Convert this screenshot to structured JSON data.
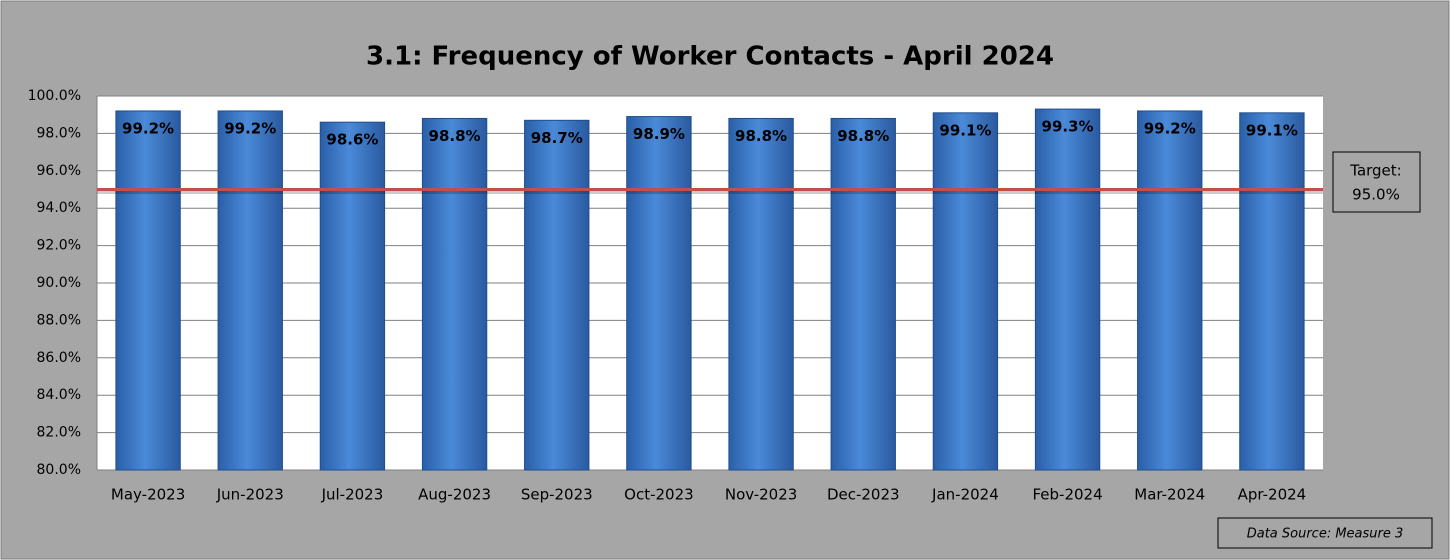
{
  "chart_data": {
    "type": "bar",
    "title": "3.1: Frequency of Worker Contacts - April 2024",
    "categories": [
      "May-2023",
      "Jun-2023",
      "Jul-2023",
      "Aug-2023",
      "Sep-2023",
      "Oct-2023",
      "Nov-2023",
      "Dec-2023",
      "Jan-2024",
      "Feb-2024",
      "Mar-2024",
      "Apr-2024"
    ],
    "values": [
      99.2,
      99.2,
      98.6,
      98.8,
      98.7,
      98.9,
      98.8,
      98.8,
      99.1,
      99.3,
      99.2,
      99.1
    ],
    "value_labels": [
      "99.2%",
      "99.2%",
      "98.6%",
      "98.8%",
      "98.7%",
      "98.9%",
      "98.8%",
      "98.8%",
      "99.1%",
      "99.3%",
      "99.2%",
      "99.1%"
    ],
    "color": "#3f7fd0",
    "ylim": [
      80,
      100
    ],
    "yticks": [
      {
        "value": 80,
        "label": "80.0%"
      },
      {
        "value": 82,
        "label": "82.0%"
      },
      {
        "value": 84,
        "label": "84.0%"
      },
      {
        "value": 86,
        "label": "86.0%"
      },
      {
        "value": 88,
        "label": "88.0%"
      },
      {
        "value": 90,
        "label": "90.0%"
      },
      {
        "value": 92,
        "label": "92.0%"
      },
      {
        "value": 94,
        "label": "94.0%"
      },
      {
        "value": 96,
        "label": "96.0%"
      },
      {
        "value": 98,
        "label": "98.0%"
      },
      {
        "value": 100,
        "label": "100.0%"
      }
    ],
    "grid": true,
    "target": {
      "label": "Target:",
      "value": 95,
      "value_label": "95.0%",
      "color": "#c0504d"
    },
    "source": "Data Source: Measure 3"
  }
}
